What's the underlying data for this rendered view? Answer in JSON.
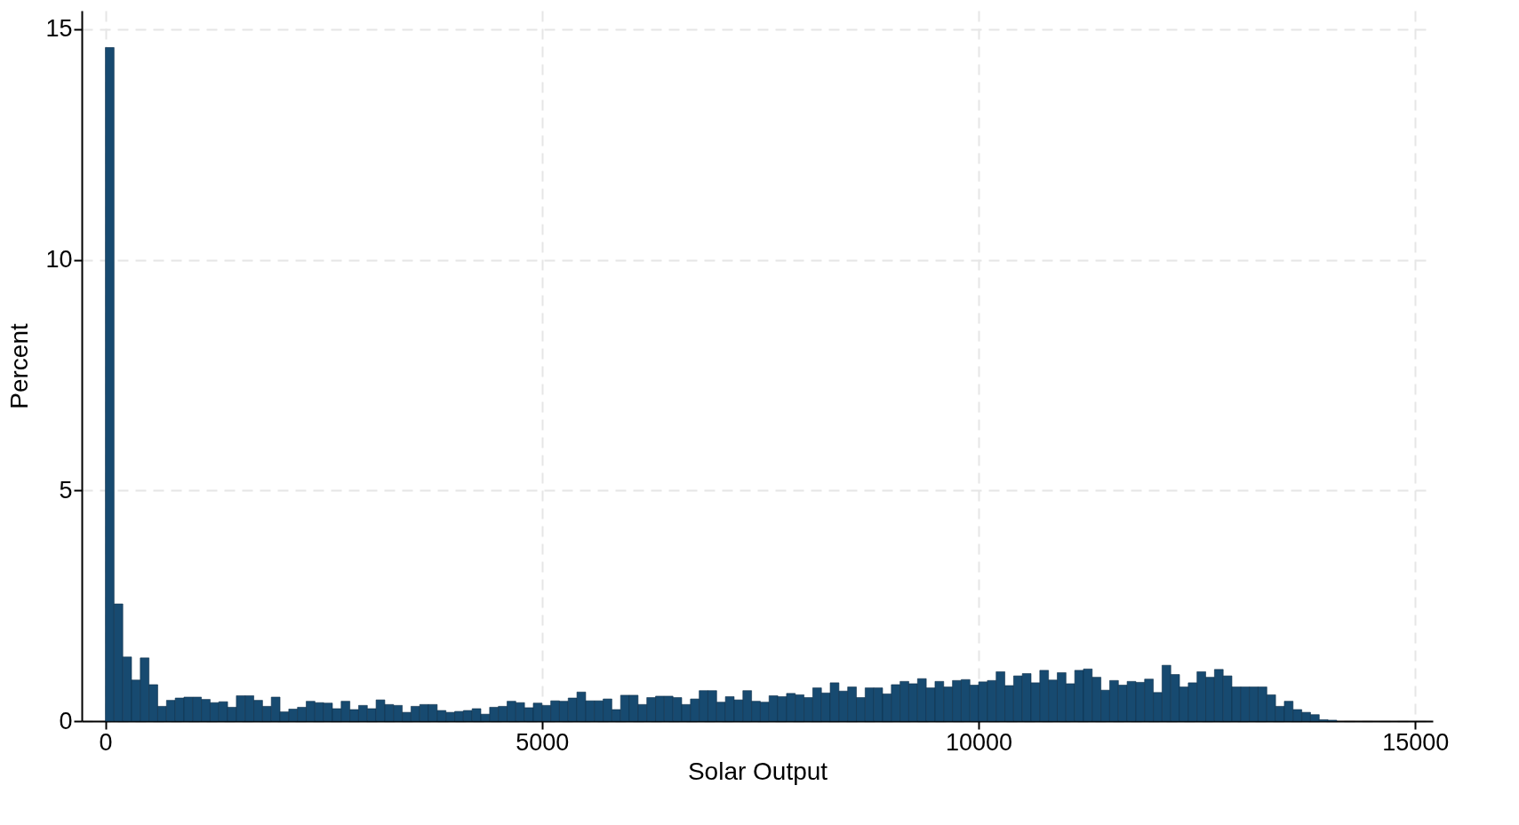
{
  "chart_data": {
    "type": "histogram",
    "xlabel": "Solar Output",
    "ylabel": "Percent",
    "color": "#174a70",
    "grid": true,
    "xlim": [
      -270,
      15200
    ],
    "ylim": [
      0,
      15.4
    ],
    "xticks": [
      0,
      5000,
      10000,
      15000
    ],
    "yticks": [
      0,
      5,
      10,
      15
    ],
    "bins": [
      0,
      100,
      200,
      300,
      400,
      500,
      600,
      700,
      800,
      900,
      1000,
      1100,
      1200,
      1300,
      1400,
      1500,
      1600,
      1700,
      1800,
      1900,
      2000,
      2100,
      2200,
      2300,
      2400,
      2500,
      2600,
      2700,
      2800,
      2900,
      3000,
      3100,
      3200,
      3300,
      3400,
      3500,
      3600,
      3700,
      3800,
      3900,
      4000,
      4100,
      4200,
      4300,
      4400,
      4500,
      4600,
      4700,
      4800,
      4900,
      5000,
      5100,
      5200,
      5300,
      5400,
      5500,
      5600,
      5700,
      5800,
      5900,
      6000,
      6100,
      6200,
      6300,
      6400,
      6500,
      6600,
      6700,
      6800,
      6900,
      7000,
      7100,
      7200,
      7300,
      7400,
      7500,
      7600,
      7700,
      7800,
      7900,
      8000,
      8100,
      8200,
      8300,
      8400,
      8500,
      8600,
      8700,
      8800,
      8900,
      9000,
      9100,
      9200,
      9300,
      9400,
      9500,
      9600,
      9700,
      9800,
      9900,
      10000,
      10100,
      10200,
      10300,
      10400,
      10500,
      10600,
      10700,
      10800,
      10900,
      11000,
      11100,
      11200,
      11300,
      11400,
      11500,
      11600,
      11700,
      11800,
      11900,
      12000,
      12100,
      12200,
      12300,
      12400,
      12500,
      12600,
      12700,
      12800,
      12900,
      13000,
      13100,
      13200,
      13300,
      13400,
      13500,
      13600,
      13700,
      13800,
      13900,
      14000,
      14100
    ],
    "values": [
      14.6,
      2.54,
      1.39,
      0.89,
      1.37,
      0.79,
      0.32,
      0.45,
      0.5,
      0.52,
      0.52,
      0.47,
      0.4,
      0.42,
      0.3,
      0.55,
      0.55,
      0.45,
      0.32,
      0.52,
      0.2,
      0.26,
      0.3,
      0.43,
      0.4,
      0.39,
      0.27,
      0.43,
      0.25,
      0.34,
      0.27,
      0.46,
      0.36,
      0.34,
      0.19,
      0.32,
      0.36,
      0.36,
      0.23,
      0.19,
      0.21,
      0.23,
      0.27,
      0.15,
      0.3,
      0.32,
      0.43,
      0.4,
      0.29,
      0.39,
      0.34,
      0.44,
      0.43,
      0.5,
      0.63,
      0.44,
      0.44,
      0.48,
      0.25,
      0.56,
      0.56,
      0.36,
      0.51,
      0.54,
      0.54,
      0.51,
      0.36,
      0.48,
      0.66,
      0.66,
      0.41,
      0.53,
      0.46,
      0.66,
      0.43,
      0.41,
      0.55,
      0.53,
      0.6,
      0.57,
      0.51,
      0.72,
      0.61,
      0.83,
      0.65,
      0.74,
      0.51,
      0.72,
      0.72,
      0.59,
      0.79,
      0.86,
      0.81,
      0.92,
      0.72,
      0.86,
      0.74,
      0.88,
      0.9,
      0.78,
      0.85,
      0.88,
      1.07,
      0.77,
      0.98,
      1.03,
      0.83,
      1.1,
      0.89,
      1.05,
      0.81,
      1.1,
      1.13,
      0.95,
      0.67,
      0.88,
      0.78,
      0.86,
      0.84,
      0.91,
      0.62,
      1.21,
      1.01,
      0.74,
      0.83,
      1.07,
      0.95,
      1.12,
      0.98,
      0.74,
      0.74,
      0.74,
      0.74,
      0.57,
      0.32,
      0.43,
      0.25,
      0.19,
      0.14,
      0.03,
      0.02
    ]
  }
}
